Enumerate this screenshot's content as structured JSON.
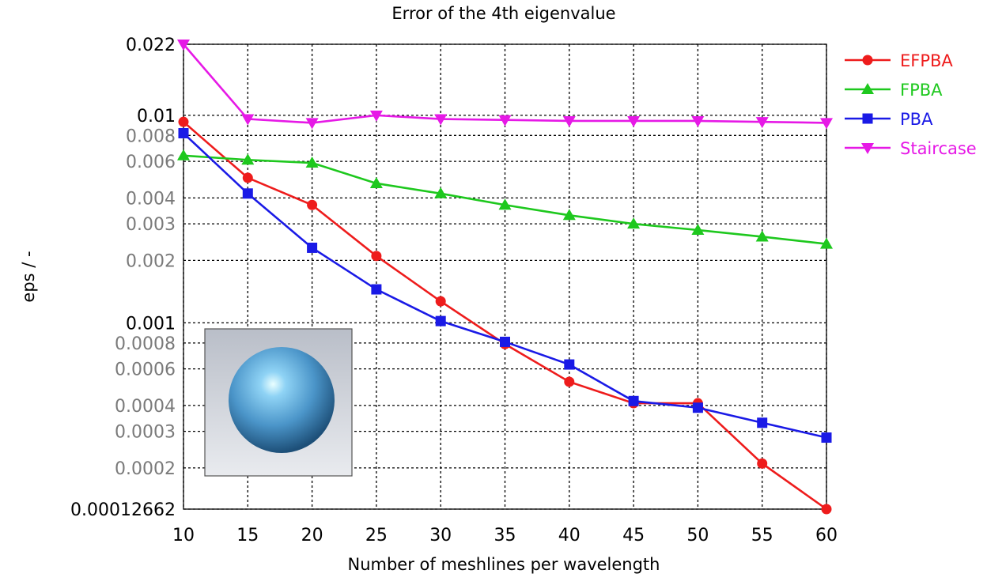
{
  "chart_data": {
    "type": "line",
    "title": "Error of the 4th eigenvalue",
    "xlabel": "Number of meshlines per wavelength",
    "ylabel": "eps / -",
    "x": [
      10,
      15,
      20,
      25,
      30,
      35,
      40,
      45,
      50,
      55,
      60
    ],
    "xlim": [
      10,
      60
    ],
    "ylim": [
      0.00012662,
      0.022
    ],
    "yscale": "log",
    "grid": true,
    "legend_position": "top-right, outside plot",
    "y_ticks": [
      {
        "value": 0.022,
        "label": "0.022",
        "emphasis": "major"
      },
      {
        "value": 0.01,
        "label": "0.01",
        "emphasis": "major"
      },
      {
        "value": 0.008,
        "label": "0.008",
        "emphasis": "minor"
      },
      {
        "value": 0.006,
        "label": "0.006",
        "emphasis": "minor"
      },
      {
        "value": 0.004,
        "label": "0.004",
        "emphasis": "minor"
      },
      {
        "value": 0.003,
        "label": "0.003",
        "emphasis": "minor"
      },
      {
        "value": 0.002,
        "label": "0.002",
        "emphasis": "minor"
      },
      {
        "value": 0.001,
        "label": "0.001",
        "emphasis": "major"
      },
      {
        "value": 0.0008,
        "label": "0.0008",
        "emphasis": "minor"
      },
      {
        "value": 0.0006,
        "label": "0.0006",
        "emphasis": "minor"
      },
      {
        "value": 0.0004,
        "label": "0.0004",
        "emphasis": "minor"
      },
      {
        "value": 0.0003,
        "label": "0.0003",
        "emphasis": "minor"
      },
      {
        "value": 0.0002,
        "label": "0.0002",
        "emphasis": "minor"
      },
      {
        "value": 0.00012662,
        "label": "0.00012662",
        "emphasis": "major"
      }
    ],
    "x_ticks": [
      "10",
      "15",
      "20",
      "25",
      "30",
      "35",
      "40",
      "45",
      "50",
      "55",
      "60"
    ],
    "series": [
      {
        "name": "EFPBA",
        "color": "#ee1c1c",
        "marker": "circle",
        "values": [
          0.0093,
          0.005,
          0.0037,
          0.0021,
          0.00127,
          0.00079,
          0.00052,
          0.00041,
          0.00041,
          0.00021,
          0.00012662
        ]
      },
      {
        "name": "FPBA",
        "color": "#1ec81e",
        "marker": "triangle-up",
        "values": [
          0.0064,
          0.0061,
          0.0059,
          0.0047,
          0.0042,
          0.0037,
          0.0033,
          0.003,
          0.0028,
          0.0026,
          0.0024
        ]
      },
      {
        "name": "PBA",
        "color": "#1a1ae6",
        "marker": "square",
        "values": [
          0.0082,
          0.0042,
          0.0023,
          0.00145,
          0.00102,
          0.00081,
          0.00063,
          0.00042,
          0.00039,
          0.00033,
          0.00028
        ]
      },
      {
        "name": "Staircase",
        "color": "#e619e6",
        "marker": "triangle-down",
        "values": [
          0.022,
          0.0096,
          0.0092,
          0.01,
          0.0096,
          0.0095,
          0.0094,
          0.0094,
          0.0094,
          0.0093,
          0.0092
        ]
      }
    ]
  },
  "inset": {
    "icon": "sphere-icon",
    "background": "#c8ccd4",
    "sphere_color": "#5fa8dc"
  }
}
